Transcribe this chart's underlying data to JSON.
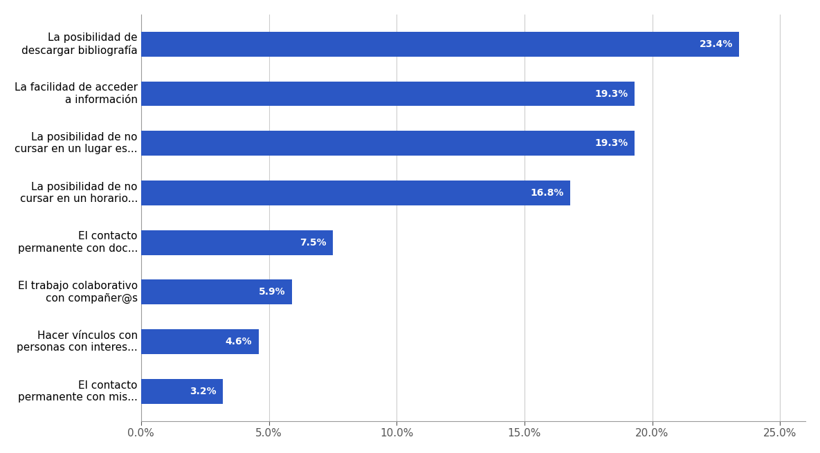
{
  "categories": [
    "El contacto\npermanente con mis...",
    "Hacer vínculos con\npersonas con interes...",
    "El trabajo colaborativo\ncon compañer@s",
    "El contacto\npermanente con doc...",
    "La posibilidad de no\ncursar en un horario...",
    "La posibilidad de no\ncursar en un lugar es...",
    "La facilidad de acceder\na información",
    "La posibilidad de\ndescargar bibliografía"
  ],
  "values": [
    3.2,
    4.6,
    5.9,
    7.5,
    16.8,
    19.3,
    19.3,
    23.4
  ],
  "bar_color": "#2B57C4",
  "label_color": "#FFFFFF",
  "background_color": "#FFFFFF",
  "xlim": [
    0,
    26.0
  ],
  "xticks": [
    0.0,
    5.0,
    10.0,
    15.0,
    20.0,
    25.0
  ],
  "xtick_labels": [
    "0.0%",
    "5.0%",
    "10.0%",
    "15.0%",
    "20.0%",
    "25.0%"
  ],
  "grid_color": "#CCCCCC",
  "label_fontsize": 10,
  "tick_fontsize": 11,
  "bar_height": 0.5
}
